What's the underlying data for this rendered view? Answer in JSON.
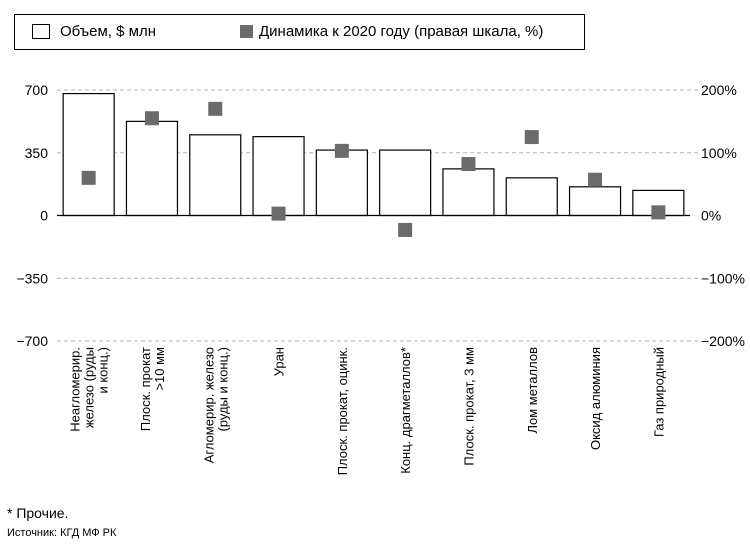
{
  "legend": {
    "bar_label": "Объем, $ млн",
    "marker_label": "Динамика к 2020 году (правая шкала, %)"
  },
  "footnote": "* Прочие.",
  "source": "Источник: КГД МФ РК",
  "chart_data": {
    "type": "bar",
    "categories": [
      "Неагломерир. железо (руды и конц.)",
      "Плоск. прокат >10 мм",
      "Агломерир. железо (руды и конц.)",
      "Уран",
      "Плоск. прокат, оцинк.",
      "Конц. драгметаллов*",
      "Плоск. прокат, 3 мм",
      "Лом металлов",
      "Оксид алюминия",
      "Газ природный"
    ],
    "category_lines": [
      [
        "Неагломерир.",
        "железо (руды",
        "и конц.)"
      ],
      [
        "Плоск. прокат",
        ">10 мм"
      ],
      [
        "Агломерир. железо",
        "(руды и конц.)"
      ],
      [
        "Уран"
      ],
      [
        "Плоск. прокат, оцинк."
      ],
      [
        "Конц. драгметаллов*"
      ],
      [
        "Плоск. прокат, 3 мм"
      ],
      [
        "Лом металлов"
      ],
      [
        "Оксид алюминия"
      ],
      [
        "Газ природный"
      ]
    ],
    "series": [
      {
        "name": "Объем, $ млн",
        "type": "bar",
        "axis": "left",
        "values": [
          680,
          525,
          450,
          440,
          365,
          365,
          260,
          210,
          160,
          140
        ]
      },
      {
        "name": "Динамика к 2020 году (правая шкала, %)",
        "type": "scatter",
        "axis": "right",
        "values": [
          60,
          155,
          170,
          3,
          103,
          -23,
          82,
          125,
          57,
          5
        ]
      }
    ],
    "left_axis": {
      "ticks": [
        700,
        350,
        0,
        -350,
        -700
      ],
      "tick_labels": [
        "700",
        "350",
        "0",
        "−350",
        "−700"
      ],
      "ylim": [
        -700,
        700
      ]
    },
    "right_axis": {
      "ticks": [
        200,
        100,
        0,
        -100,
        -200
      ],
      "tick_labels": [
        "200%",
        "100%",
        "0%",
        "−100%",
        "−200%"
      ],
      "ylim": [
        -200,
        200
      ]
    },
    "grid": "horizontal dashed",
    "legend_position": "top-left",
    "colors": {
      "bar_fill": "#ffffff",
      "bar_stroke": "#000000",
      "marker": "#6b6b6b",
      "grid": "#b0b0b0"
    }
  }
}
